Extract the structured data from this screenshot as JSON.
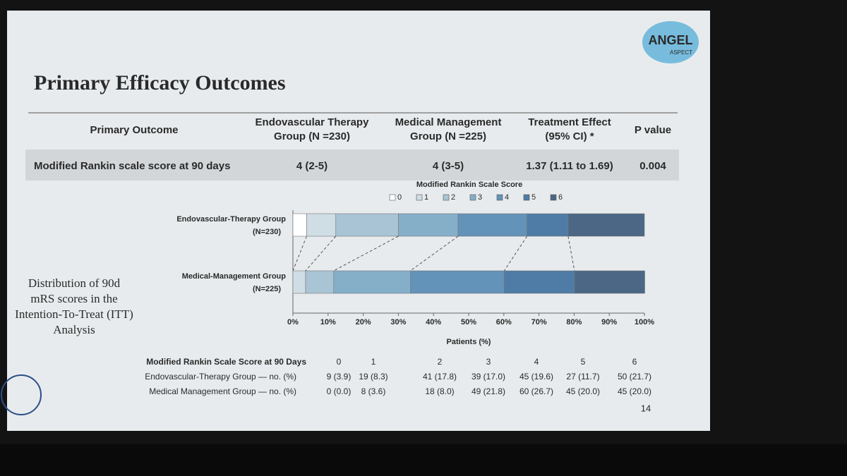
{
  "slide": {
    "title": "Primary Efficacy Outcomes",
    "logo": [
      "ANGEL",
      "ASPECT"
    ],
    "page_number": "14",
    "side_text": [
      "Distribution of 90d",
      "mRS scores in the",
      "Intention-To-Treat (ITT)",
      "Analysis"
    ]
  },
  "outcome_table": {
    "header": [
      [
        "Primary Outcome"
      ],
      [
        "Endovascular Therapy",
        "Group (N =230)"
      ],
      [
        "Medical Management",
        "Group (N =225)"
      ],
      [
        "Treatment Effect",
        "(95% CI) *"
      ],
      [
        "P value"
      ]
    ],
    "rows": [
      [
        "Modified Rankin scale score at 90 days",
        "4 (2-5)",
        "4 (3-5)",
        "1.37 (1.11 to 1.69)",
        "0.004"
      ]
    ]
  },
  "chart_data": {
    "type": "stacked-bar-horizontal",
    "legend_title": "Modified Rankin Scale Score",
    "categories": [
      "Endovascular-Therapy Group",
      "Medical-Management Group"
    ],
    "category_notes": [
      "(N=230)",
      "(N=225)"
    ],
    "series": [
      {
        "name": "0",
        "color": "#ffffff",
        "values": [
          3.9,
          0.0
        ]
      },
      {
        "name": "1",
        "color": "#cfdde5",
        "values": [
          8.3,
          3.6
        ]
      },
      {
        "name": "2",
        "color": "#a9c4d4",
        "values": [
          17.8,
          8.0
        ]
      },
      {
        "name": "3",
        "color": "#85aec9",
        "values": [
          17.0,
          21.8
        ]
      },
      {
        "name": "4",
        "color": "#6393b9",
        "values": [
          19.6,
          26.7
        ]
      },
      {
        "name": "5",
        "color": "#4f7ca6",
        "values": [
          11.7,
          20.0
        ]
      },
      {
        "name": "6",
        "color": "#4b6785",
        "values": [
          21.7,
          20.0
        ]
      }
    ],
    "xlim": [
      0,
      100
    ],
    "xticks": [
      {
        "value": 0,
        "label": "0%"
      },
      {
        "value": 10,
        "label": "10%"
      },
      {
        "value": 20,
        "label": "20%"
      },
      {
        "value": 30,
        "label": "30%"
      },
      {
        "value": 40,
        "label": "40%"
      },
      {
        "value": 50,
        "label": "50%"
      },
      {
        "value": 60,
        "label": "60%"
      },
      {
        "value": 70,
        "label": "70%"
      },
      {
        "value": 80,
        "label": "80%"
      },
      {
        "value": 90,
        "label": "90%"
      },
      {
        "value": 100,
        "label": "100%"
      }
    ],
    "xlabel": "Patients (%)"
  },
  "score_table": {
    "header": [
      "Modified Rankin Scale Score at 90 Days",
      "0",
      "1",
      "2",
      "3",
      "4",
      "5",
      "6"
    ],
    "rows": [
      [
        "Endovascular-Therapy Group — no. (%)",
        "9 (3.9)",
        "19 (8.3)",
        "41 (17.8)",
        "39 (17.0)",
        "45 (19.6)",
        "27 (11.7)",
        "50 (21.7)"
      ],
      [
        "Medical Management Group — no. (%)",
        "0 (0.0)",
        "8 (3.6)",
        "18 (8.0)",
        "49 (21.8)",
        "60 (26.7)",
        "45 (20.0)",
        "45 (20.0)"
      ]
    ]
  }
}
